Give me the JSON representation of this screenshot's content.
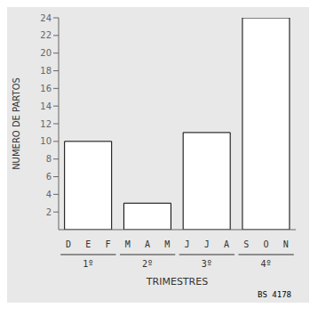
{
  "chart_data": {
    "type": "bar",
    "title": "",
    "xlabel": "TRIMESTRES",
    "ylabel": "NUMERO DE PARTOS",
    "categories": [
      "1º",
      "2º",
      "3º",
      "4º"
    ],
    "values": [
      10,
      3,
      11,
      24
    ],
    "color": "#ffffff",
    "ylim": [
      0,
      24
    ],
    "yticks": [
      2,
      4,
      6,
      8,
      10,
      12,
      14,
      16,
      18,
      20,
      22,
      24
    ],
    "grid": false,
    "annotations": {
      "months": [
        "D",
        "E",
        "F",
        "M",
        "A",
        "M",
        "J",
        "J",
        "A",
        "S",
        "O",
        "N"
      ],
      "footnote": "BS 4178"
    }
  }
}
